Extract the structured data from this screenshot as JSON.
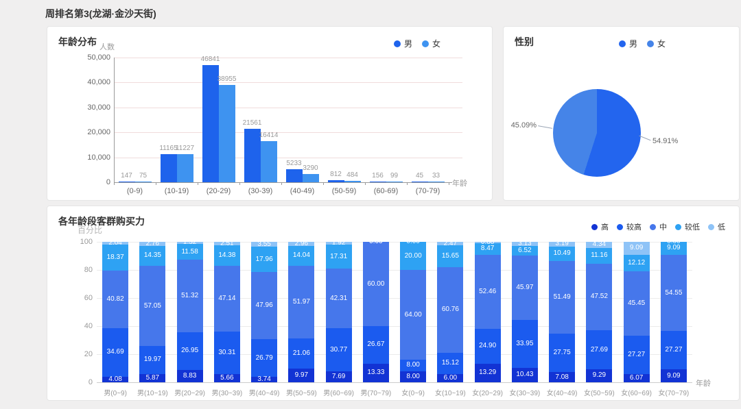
{
  "page": {
    "title": "周排名第3(龙湖·金沙天街)"
  },
  "chart_data": [
    {
      "id": "age_distribution",
      "type": "bar",
      "title": "年龄分布",
      "ylabel": "人数",
      "xlabel": "年龄",
      "categories": [
        "(0-9)",
        "(10-19)",
        "(20-29)",
        "(30-39)",
        "(40-49)",
        "(50-59)",
        "(60-69)",
        "(70-79)"
      ],
      "series": [
        {
          "name": "男",
          "color": "#1e63ec",
          "values": [
            147,
            11165,
            46841,
            21561,
            5233,
            812,
            156,
            45
          ]
        },
        {
          "name": "女",
          "color": "#3e93f0",
          "values": [
            75,
            11227,
            38955,
            16414,
            3290,
            484,
            99,
            33
          ]
        }
      ],
      "ylim": [
        0,
        50000
      ],
      "yticks": [
        "50,000",
        "40,000",
        "30,000",
        "20,000",
        "10,000",
        "0"
      ],
      "grid": true,
      "grid_color": "#f0dcdc",
      "axis_color": "#999999",
      "legend_position": "top-right"
    },
    {
      "id": "gender",
      "type": "pie",
      "title": "性别",
      "slices": [
        {
          "name": "男",
          "value": 54.91,
          "label": "54.91%",
          "color": "#2365ee"
        },
        {
          "name": "女",
          "value": 45.09,
          "label": "45.09%",
          "color": "#4584e8"
        }
      ],
      "legend_position": "top-right"
    },
    {
      "id": "purchase_power",
      "type": "stacked-bar",
      "title": "各年龄段客群购买力",
      "ylabel": "百分比",
      "xlabel": "年龄",
      "categories": [
        "男(0~9)",
        "男(10~19)",
        "男(20~29)",
        "男(30~39)",
        "男(40~49)",
        "男(50~59)",
        "男(60~69)",
        "男(70~79)",
        "女(0~9)",
        "女(10~19)",
        "女(20~29)",
        "女(30~39)",
        "女(40~49)",
        "女(50~59)",
        "女(60~69)",
        "女(70~79)"
      ],
      "series": [
        {
          "name": "高",
          "color": "#1233d4",
          "values": [
            4.08,
            5.87,
            8.83,
            5.66,
            3.74,
            9.97,
            7.69,
            13.33,
            8.0,
            6.0,
            13.29,
            10.43,
            7.08,
            9.29,
            6.07,
            9.09
          ]
        },
        {
          "name": "较高",
          "color": "#1b5bef",
          "values": [
            34.69,
            19.97,
            26.95,
            30.31,
            26.79,
            21.06,
            30.77,
            26.67,
            8.0,
            15.12,
            24.9,
            33.95,
            27.75,
            27.69,
            27.27,
            27.27
          ]
        },
        {
          "name": "中",
          "color": "#4677eb",
          "values": [
            40.82,
            57.05,
            51.32,
            47.14,
            47.96,
            51.97,
            42.31,
            60.0,
            64.0,
            60.76,
            52.46,
            45.97,
            51.49,
            47.52,
            45.45,
            54.55
          ]
        },
        {
          "name": "较低",
          "color": "#2ea2f3",
          "values": [
            18.37,
            14.35,
            11.58,
            14.38,
            17.96,
            14.04,
            17.31,
            0.0,
            20.0,
            15.65,
            8.47,
            6.52,
            10.49,
            11.16,
            12.12,
            9.09
          ]
        },
        {
          "name": "低",
          "color": "#8ec3f7",
          "values": [
            2.04,
            2.76,
            1.32,
            2.51,
            3.55,
            2.96,
            1.92,
            0.0,
            0.0,
            2.47,
            0.88,
            3.13,
            3.19,
            4.34,
            9.09,
            0.0
          ]
        }
      ],
      "ylim": [
        0,
        100
      ],
      "yticks": [
        "100",
        "80",
        "60",
        "40",
        "20",
        "0"
      ],
      "grid": true,
      "grid_color": "#ebebeb",
      "axis_color": "#cccccc",
      "legend_position": "top-right"
    }
  ]
}
